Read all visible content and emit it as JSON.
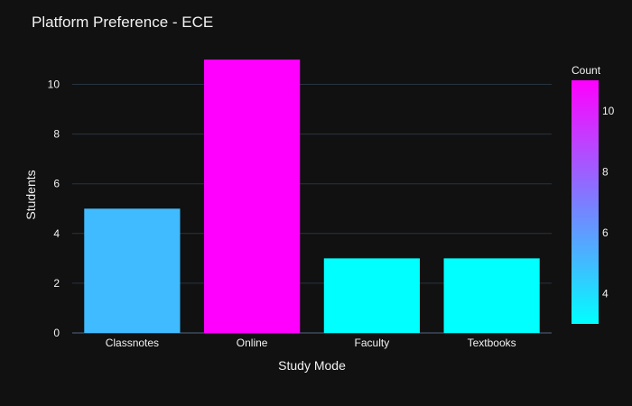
{
  "chart_data": {
    "type": "bar",
    "title": "Platform Preference - ECE",
    "xlabel": "Study Mode",
    "ylabel": "Students",
    "categories": [
      "Classnotes",
      "Online",
      "Faculty",
      "Textbooks"
    ],
    "values": [
      5,
      11,
      3,
      3
    ],
    "ylim": [
      0,
      11.58
    ],
    "yticks": [
      0,
      2,
      4,
      6,
      8,
      10
    ],
    "grid": true,
    "colorbar": {
      "title": "Count",
      "range": [
        3,
        11
      ],
      "ticks": [
        4,
        6,
        8,
        10
      ],
      "colorscale": [
        "#00ffff",
        "#41bbff",
        "#7c7dff",
        "#bf40ff",
        "#ff00ff"
      ]
    },
    "background": "#111111"
  }
}
